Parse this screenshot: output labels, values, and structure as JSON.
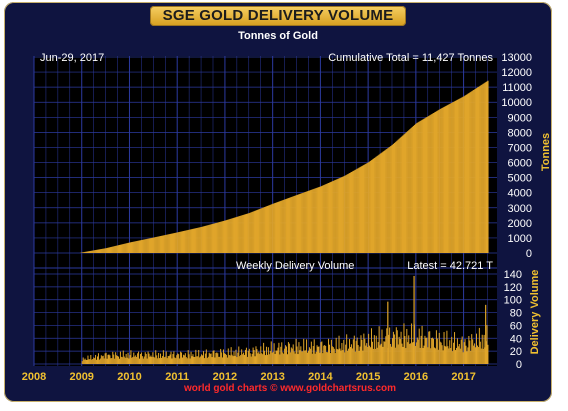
{
  "title": "SGE GOLD DELIVERY VOLUME",
  "subtitle": "Tonnes of Gold",
  "date_label": "Jun-29, 2017",
  "footer": "world gold charts © www.goldchartsrus.com",
  "colors": {
    "background": "#0f1440",
    "bars": "#e0a52a",
    "grid": "#2c3aa0",
    "title_bg": "#f0c04a",
    "axis_text": "#f0c030",
    "footer": "#ff2a2a"
  },
  "chart_data": [
    {
      "type": "bar",
      "title": "SGE GOLD DELIVERY VOLUME",
      "subtitle": "Tonnes of Gold",
      "annotation": "Cumulative Total = 11,427 Tonnes",
      "ylabel": "Tonnes",
      "ylim": [
        0,
        13000
      ],
      "yticks": [
        0,
        1000,
        2000,
        3000,
        4000,
        5000,
        6000,
        7000,
        8000,
        9000,
        10000,
        11000,
        12000,
        13000
      ],
      "xlim": [
        2008.0,
        2017.7
      ],
      "grid": true,
      "x": [
        2008.95,
        2009.0,
        2009.5,
        2010.0,
        2010.5,
        2011.0,
        2011.5,
        2012.0,
        2012.5,
        2013.0,
        2013.5,
        2014.0,
        2014.5,
        2015.0,
        2015.5,
        2016.0,
        2016.5,
        2017.0,
        2017.5
      ],
      "values": [
        0,
        40,
        320,
        700,
        1030,
        1370,
        1730,
        2160,
        2650,
        3270,
        3850,
        4420,
        5120,
        6020,
        7180,
        8600,
        9550,
        10400,
        11427
      ]
    },
    {
      "type": "bar",
      "title": "Weekly Delivery Volume",
      "annotation": "Latest = 42.721 T",
      "ylabel": "Delivery Volume",
      "ylim": [
        0,
        140
      ],
      "yticks": [
        0,
        20,
        40,
        60,
        80,
        100,
        120,
        140
      ],
      "xlim": [
        2008.0,
        2017.7
      ],
      "xticks": [
        "2008",
        "2009",
        "2010",
        "2011",
        "2012",
        "2013",
        "2014",
        "2015",
        "2016",
        "2017"
      ],
      "grid": true,
      "x": [
        2009.0,
        2009.5,
        2010.0,
        2010.5,
        2011.0,
        2011.5,
        2012.0,
        2012.5,
        2013.0,
        2013.5,
        2014.0,
        2014.5,
        2015.0,
        2015.5,
        2016.0,
        2016.5,
        2017.0,
        2017.5
      ],
      "values": [
        8,
        14,
        15,
        15,
        15,
        16,
        18,
        20,
        25,
        28,
        28,
        32,
        38,
        45,
        45,
        38,
        33,
        42.721
      ],
      "notable": [
        {
          "x": 2015.4,
          "value": 97
        },
        {
          "x": 2015.95,
          "value": 137
        },
        {
          "x": 2017.45,
          "value": 92
        }
      ]
    }
  ]
}
